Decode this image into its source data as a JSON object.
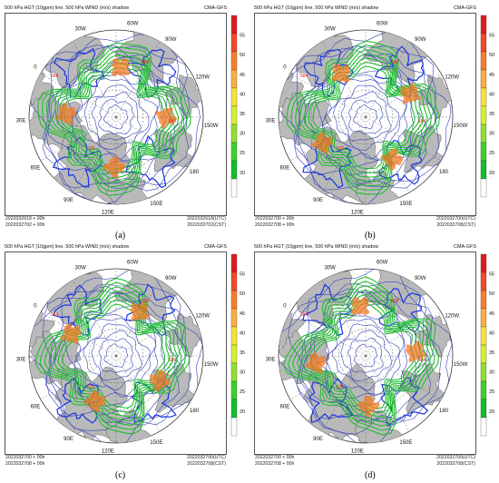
{
  "panels": [
    {
      "id": "a",
      "title": "500 hPa HGT (10gpm) line, 500 hPa WIND (m/s) shadow",
      "source": "CMA-GFS",
      "footer_left_1": "2022032618 + 00h",
      "footer_left_2": "2022032702 + 00h",
      "footer_right_1": "2022032618(UTC)",
      "footer_right_2": "2022032702(CST)",
      "caption": "(a)"
    },
    {
      "id": "b",
      "title": "500 hPa HGT (10gpm) line, 500 hPa WIND (m/s) shadow",
      "source": "CMA-GFS",
      "footer_left_1": "2022032700 + 00h",
      "footer_left_2": "2022032708 + 00h",
      "footer_right_1": "2022032700(UTC)",
      "footer_right_2": "2022032708(CST)",
      "caption": "(b)"
    },
    {
      "id": "c",
      "title": "500 hPa HGT (10gpm) line, 500 hPa WIND (m/s) shadow",
      "source": "CMA-GFS",
      "footer_left_1": "2022032700 + 00h",
      "footer_left_2": "2022032708 + 00h",
      "footer_right_1": "2022032700(UTC)",
      "footer_right_2": "2022032708(CST)",
      "caption": "(c)"
    },
    {
      "id": "d",
      "title": "500 hPa HGT (10gpm) line, 500 hPa WIND (m/s) shadow",
      "source": "CMA-GFS",
      "footer_left_1": "2022032700 + 00h",
      "footer_left_2": "2022032708 + 00h",
      "footer_right_1": "2022032700(UTC)",
      "footer_right_2": "2022032708(CST)",
      "caption": "(d)"
    }
  ],
  "longitude_labels": [
    "60W",
    "90W",
    "120W",
    "150W",
    "180",
    "150E",
    "120E",
    "90E",
    "60E",
    "30E",
    "0",
    "30W"
  ],
  "colorbar": {
    "ticks": [
      "55",
      "50",
      "45",
      "40",
      "35",
      "30",
      "25",
      "20"
    ],
    "colors": [
      "#e41a1c",
      "#f5482a",
      "#fb7a2c",
      "#fdae3b",
      "#f8e23a",
      "#d6ef2f",
      "#8fe02c",
      "#3bd02c",
      "#0fbf2b",
      "#ffffff"
    ]
  },
  "contour_labels": [
    "584",
    "588",
    "576"
  ],
  "colors": {
    "land": "#b9b9b9",
    "height_contour": "#3341b8",
    "wind_jet": "#1fbf2e",
    "wind_core": "#f47a22",
    "label_red": "#e0211c",
    "coast_blue": "#1733e6"
  }
}
